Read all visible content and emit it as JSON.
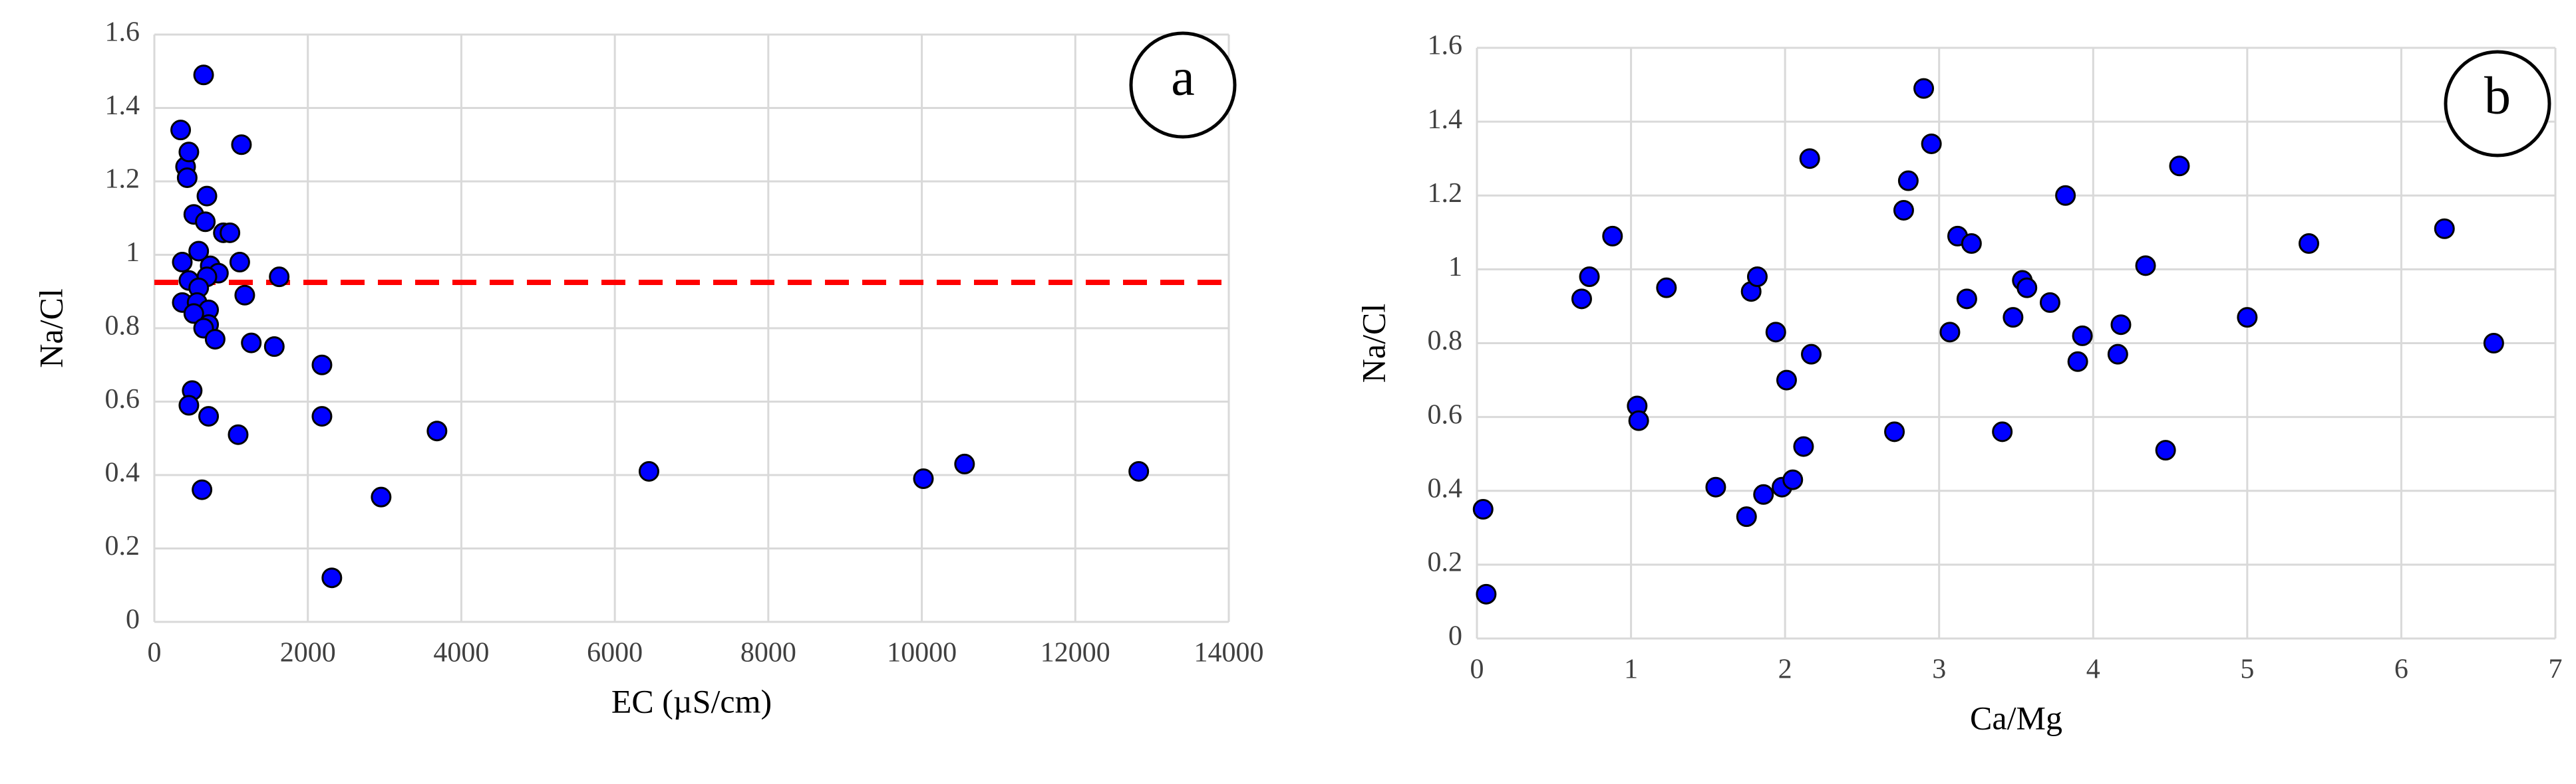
{
  "chart_data": [
    {
      "type": "scatter",
      "panel_label": "a",
      "x_label": "EC (µS/cm)",
      "y_label": "Na/Cl",
      "xlim": [
        0,
        14000
      ],
      "ylim": [
        0,
        1.6
      ],
      "xticks": [
        0,
        2000,
        4000,
        6000,
        8000,
        10000,
        12000,
        14000
      ],
      "yticks": [
        0,
        0.2,
        0.4,
        0.6,
        0.8,
        1,
        1.2,
        1.4,
        1.6
      ],
      "grid": true,
      "reference_line": {
        "y": 0.925,
        "color": "#ff0000",
        "dashed": true
      },
      "series": [
        {
          "color": "#0000ff",
          "x": [
            343,
            642,
            407,
            450,
            428,
            1135,
            685,
            514,
            664,
            899,
            985,
            578,
            364,
            1113,
            1627,
            728,
            835,
            685,
            450,
            578,
            1178,
            364,
            557,
            707,
            514,
            707,
            642,
            792,
            1263,
            1563,
            2184,
            493,
            450,
            707,
            2184,
            1092,
            3683,
            621,
            2955,
            2313,
            6445,
            10021,
            10557,
            12827
          ],
          "values": [
            1.34,
            1.49,
            1.24,
            1.28,
            1.21,
            1.3,
            1.16,
            1.11,
            1.09,
            1.06,
            1.06,
            1.01,
            0.98,
            0.98,
            0.94,
            0.97,
            0.95,
            0.94,
            0.93,
            0.91,
            0.89,
            0.87,
            0.87,
            0.85,
            0.84,
            0.81,
            0.8,
            0.77,
            0.76,
            0.75,
            0.7,
            0.63,
            0.59,
            0.56,
            0.56,
            0.51,
            0.52,
            0.36,
            0.34,
            0.12,
            0.41,
            0.39,
            0.43,
            0.41
          ]
        }
      ]
    },
    {
      "type": "scatter",
      "panel_label": "b",
      "x_label": "Ca/Mg",
      "y_label": "Na/Cl",
      "xlim": [
        0,
        7
      ],
      "ylim": [
        0,
        1.6
      ],
      "xticks": [
        0,
        1,
        2,
        3,
        4,
        5,
        6,
        7
      ],
      "yticks": [
        0,
        0.2,
        0.4,
        0.6,
        0.8,
        1,
        1.2,
        1.4,
        1.6
      ],
      "grid": true,
      "series": [
        {
          "color": "#0000ff",
          "x": [
            0.04,
            0.06,
            0.68,
            0.73,
            0.88,
            1.04,
            1.05,
            1.23,
            1.55,
            1.75,
            1.78,
            1.82,
            1.86,
            1.94,
            1.98,
            2.01,
            2.05,
            2.12,
            2.16,
            2.17,
            2.71,
            2.77,
            2.8,
            2.9,
            2.95,
            3.07,
            3.12,
            3.18,
            3.21,
            3.41,
            3.48,
            3.54,
            3.57,
            3.72,
            3.82,
            3.9,
            3.93,
            4.16,
            4.18,
            4.34,
            4.47,
            4.56,
            5.0,
            5.4,
            6.28,
            6.6
          ],
          "values": [
            0.35,
            0.12,
            0.92,
            0.98,
            1.09,
            0.63,
            0.59,
            0.95,
            0.41,
            0.33,
            0.94,
            0.98,
            0.39,
            0.83,
            0.41,
            0.7,
            0.43,
            0.52,
            1.3,
            0.77,
            0.56,
            1.16,
            1.24,
            1.49,
            1.34,
            0.83,
            1.09,
            0.92,
            1.07,
            0.56,
            0.87,
            0.97,
            0.95,
            0.91,
            1.2,
            0.75,
            0.82,
            0.77,
            0.85,
            1.01,
            0.51,
            1.28,
            0.87,
            1.07,
            1.11,
            0.8
          ]
        }
      ]
    }
  ]
}
